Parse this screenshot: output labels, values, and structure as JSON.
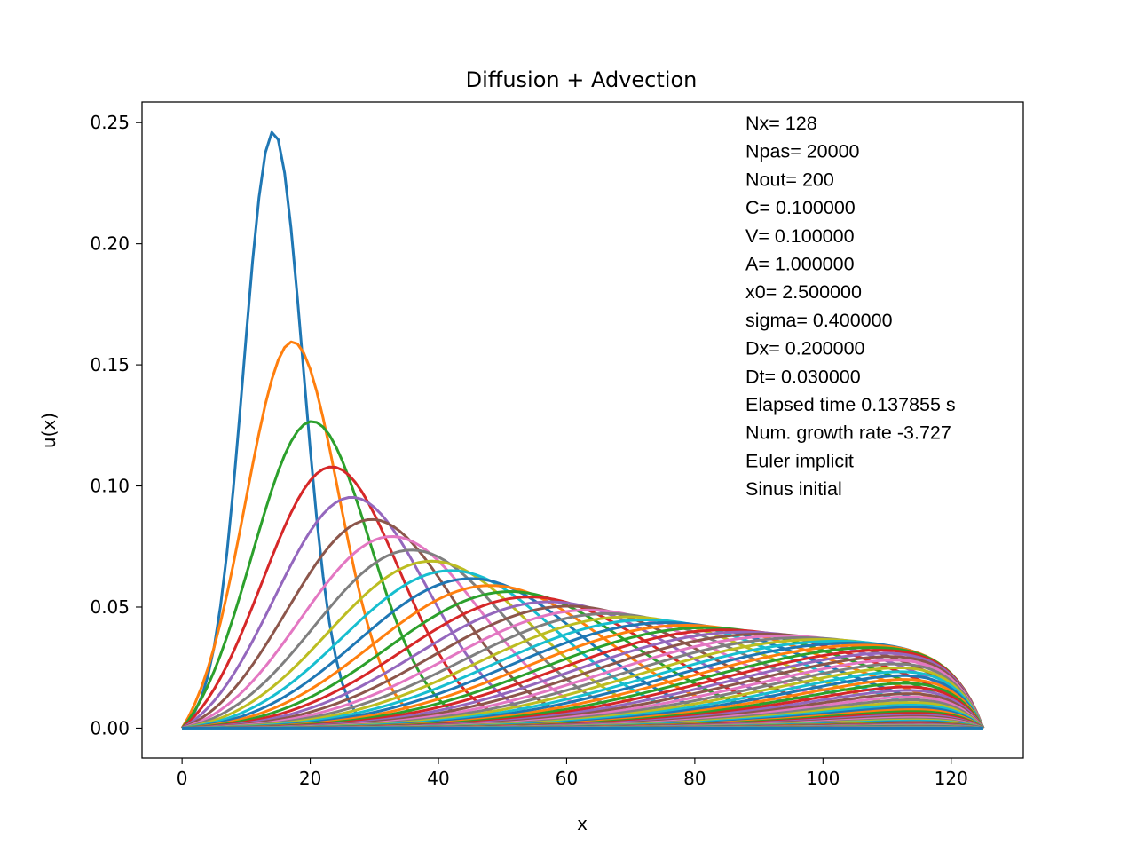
{
  "chart_data": {
    "type": "line",
    "title": "Diffusion + Advection",
    "xlabel": "x",
    "ylabel": "u(x)",
    "xlim": [
      -6.25,
      131.25
    ],
    "ylim": [
      -0.0123,
      0.2585
    ],
    "xticks": [
      0,
      20,
      40,
      60,
      80,
      100,
      120
    ],
    "xtick_labels": [
      "0",
      "20",
      "40",
      "60",
      "80",
      "100",
      "120"
    ],
    "yticks": [
      0.0,
      0.05,
      0.1,
      0.15,
      0.2,
      0.25
    ],
    "ytick_labels": [
      "0.00",
      "0.05",
      "0.10",
      "0.15",
      "0.20",
      "0.25"
    ],
    "grid": false,
    "legend": "none",
    "series_count": 101,
    "color_cycle": [
      "#1f77b4",
      "#ff7f0e",
      "#2ca02c",
      "#d62728",
      "#9467bd",
      "#8c564b",
      "#e377c2",
      "#7f7f7f",
      "#bcbd22",
      "#17becf"
    ],
    "x_domain": [
      0,
      125
    ],
    "representative_series": [
      {
        "x": [
          0,
          5,
          10,
          12,
          15,
          18,
          20,
          22,
          25,
          30,
          35,
          40,
          125
        ],
        "values": [
          0,
          0.04,
          0.16,
          0.22,
          0.246,
          0.2,
          0.15,
          0.095,
          0.035,
          0.005,
          0.0,
          0.0,
          0.0
        ]
      },
      {
        "peak_x": 18,
        "peak_y": 0.176
      },
      {
        "peak_x": 21,
        "peak_y": 0.144
      },
      {
        "peak_x": 24,
        "peak_y": 0.124
      },
      {
        "peak_x": 26.5,
        "peak_y": 0.111
      },
      {
        "peak_x": 29.5,
        "peak_y": 0.101
      },
      {
        "peak_x": 33,
        "peak_y": 0.093
      },
      {
        "peak_x": 36,
        "peak_y": 0.086
      },
      {
        "peak_x": 39,
        "peak_y": 0.081
      },
      {
        "peak_x": 42,
        "peak_y": 0.076
      }
    ],
    "annotations": [
      "Nx= 128",
      "Npas= 20000",
      "Nout= 200",
      "C= 0.100000",
      "V= 0.100000",
      "A= 1.000000",
      "x0= 2.500000",
      "sigma= 0.400000",
      "Dx= 0.200000",
      "Dt= 0.030000",
      "Elapsed time 0.137855 s",
      "Num. growth rate -3.727",
      "Euler implicit",
      "Sinus initial"
    ]
  }
}
